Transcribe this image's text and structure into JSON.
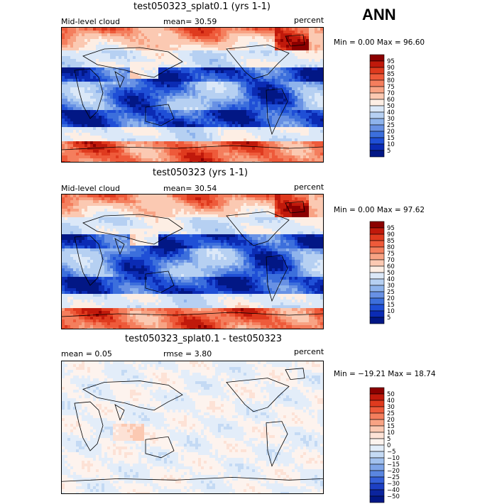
{
  "season": "ANN",
  "chart_data": [
    {
      "type": "heatmap",
      "title": "test050323_splat0.1 (yrs 1-1)",
      "left_label": "Mid-level cloud",
      "mean_label": "mean=  30.59",
      "units": "percent",
      "minmax": "Min =    0.00 Max =   96.60",
      "min": 0.0,
      "max": 96.6,
      "colorbar_levels": [
        "95",
        "90",
        "85",
        "80",
        "75",
        "70",
        "60",
        "50",
        "40",
        "30",
        "25",
        "20",
        "15",
        "10",
        "5"
      ],
      "colorbar_colors": [
        "#8b0000",
        "#c0190b",
        "#df3a1e",
        "#ee5a3a",
        "#f47e5d",
        "#f8a384",
        "#fbc9b2",
        "#fdeee4",
        "#dbe8f8",
        "#b6d0f2",
        "#8eb3ec",
        "#6891e4",
        "#3c6fdc",
        "#1f4fd6",
        "#0b2bb4",
        "#021785"
      ]
    },
    {
      "type": "heatmap",
      "title": "test050323 (yrs 1-1)",
      "left_label": "Mid-level cloud",
      "mean_label": "mean=  30.54",
      "units": "percent",
      "minmax": "Min =    0.00 Max =   97.62",
      "min": 0.0,
      "max": 97.62,
      "colorbar_levels": [
        "95",
        "90",
        "85",
        "80",
        "75",
        "70",
        "60",
        "50",
        "40",
        "30",
        "25",
        "20",
        "15",
        "10",
        "5"
      ],
      "colorbar_colors": [
        "#8b0000",
        "#c0190b",
        "#df3a1e",
        "#ee5a3a",
        "#f47e5d",
        "#f8a384",
        "#fbc9b2",
        "#fdeee4",
        "#dbe8f8",
        "#b6d0f2",
        "#8eb3ec",
        "#6891e4",
        "#3c6fdc",
        "#1f4fd6",
        "#0b2bb4",
        "#021785"
      ]
    },
    {
      "type": "heatmap",
      "title": "test050323_splat0.1 - test050323",
      "left_label": "mean =    0.05",
      "mean_label": "rmse =    3.80",
      "units": "percent",
      "minmax": "Min = −19.21 Max =   18.74",
      "min": -19.21,
      "max": 18.74,
      "colorbar_levels": [
        "50",
        "40",
        "30",
        "25",
        "20",
        "15",
        "10",
        "5",
        "0",
        "−5",
        "−10",
        "−15",
        "−20",
        "−25",
        "−30",
        "−40",
        "−50"
      ],
      "colorbar_colors": [
        "#8b0000",
        "#c0190b",
        "#df3a1e",
        "#ee5a3a",
        "#f47e5d",
        "#f8a384",
        "#fbc9b2",
        "#fde2d6",
        "#fdf3ee",
        "#e3edf9",
        "#c4daf4",
        "#a2c1ee",
        "#7fa5e8",
        "#5a86e0",
        "#345fd8",
        "#1d40c4",
        "#0b249e",
        "#021785"
      ]
    }
  ]
}
